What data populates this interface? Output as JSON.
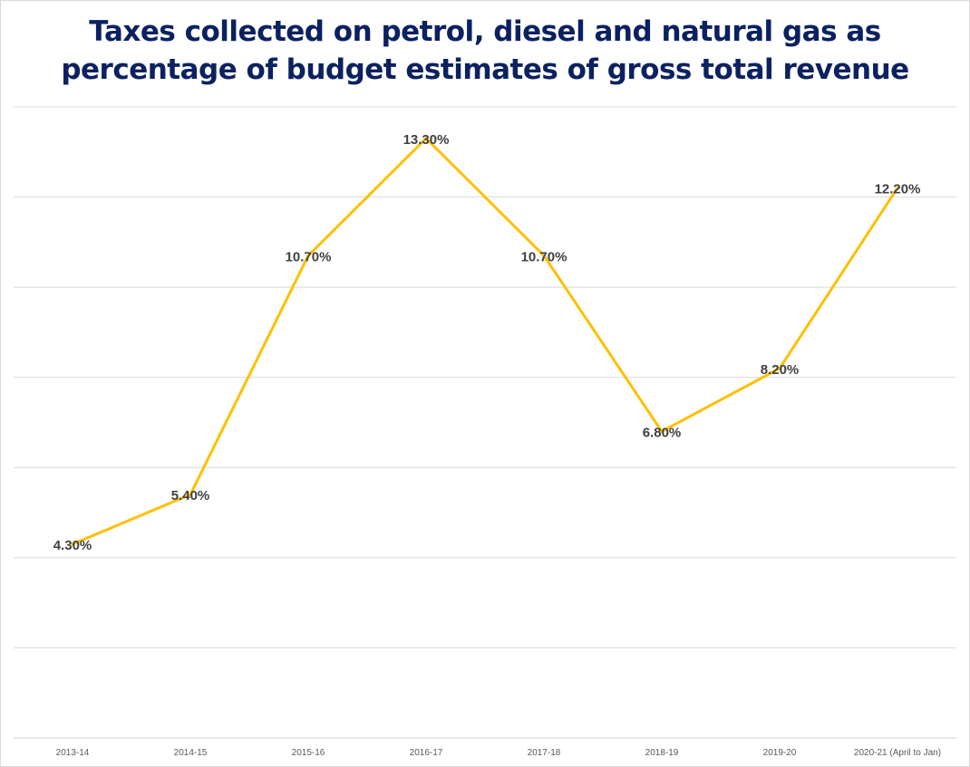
{
  "chart_data": {
    "type": "line",
    "title_lines": [
      "Taxes collected on petrol, diesel and natural gas as",
      "percentage of budget estimates of gross total revenue"
    ],
    "categories": [
      "2013-14",
      "2014-15",
      "2015-16",
      "2016-17",
      "2017-18",
      "2018-19",
      "2019-20",
      "2020-21 (April to Jan)"
    ],
    "values": [
      4.3,
      5.4,
      10.7,
      13.3,
      10.7,
      6.8,
      8.2,
      12.2
    ],
    "data_labels": [
      "4.30%",
      "5.40%",
      "10.70%",
      "13.30%",
      "10.70%",
      "6.80%",
      "8.20%",
      "12.20%"
    ],
    "xlabel": "",
    "ylabel": "",
    "ylim": [
      0,
      14
    ],
    "grid_step": 2,
    "grid": true,
    "legend": "none",
    "line_color": "#FFC000",
    "title_color": "#0B2160",
    "label_color": "#404040"
  }
}
